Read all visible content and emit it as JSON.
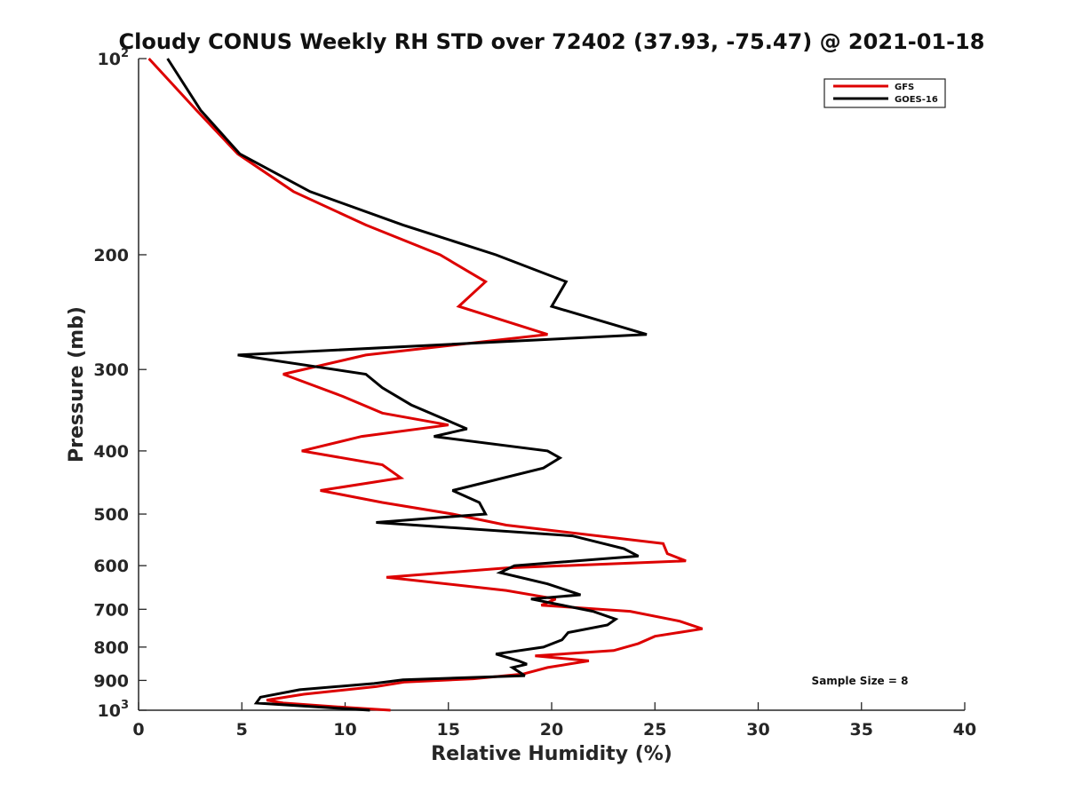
{
  "chart_data": {
    "type": "line",
    "title": "Cloudy CONUS Weekly RH STD over 72402 (37.93, -75.47) @ 2021-01-18",
    "xlabel": "Relative Humidity (%)",
    "ylabel": "Pressure (mb)",
    "xlim": [
      0,
      40
    ],
    "ylim": [
      100,
      1000
    ],
    "y_scale": "log",
    "y_reversed": true,
    "x_ticks": [
      "0",
      "5",
      "10",
      "15",
      "20",
      "25",
      "30",
      "35",
      "40"
    ],
    "y_ticks": [
      {
        "value": 100,
        "label": "10",
        "sup": "2"
      },
      {
        "value": 200,
        "label": "200",
        "sup": ""
      },
      {
        "value": 300,
        "label": "300",
        "sup": ""
      },
      {
        "value": 400,
        "label": "400",
        "sup": ""
      },
      {
        "value": 500,
        "label": "500",
        "sup": ""
      },
      {
        "value": 600,
        "label": "600",
        "sup": ""
      },
      {
        "value": 700,
        "label": "700",
        "sup": ""
      },
      {
        "value": 800,
        "label": "800",
        "sup": ""
      },
      {
        "value": 900,
        "label": "900",
        "sup": ""
      },
      {
        "value": 1000,
        "label": "10",
        "sup": "3"
      }
    ],
    "legend": {
      "placement": "top-right"
    },
    "annotation": "Sample Size = 8",
    "series": [
      {
        "name": "GFS",
        "color": "#dd0000",
        "points": [
          [
            0.5,
            100
          ],
          [
            2.8,
            120
          ],
          [
            4.8,
            140
          ],
          [
            7.5,
            160
          ],
          [
            11.0,
            180
          ],
          [
            14.6,
            200
          ],
          [
            16.8,
            220
          ],
          [
            15.5,
            240
          ],
          [
            19.8,
            265
          ],
          [
            11.0,
            285
          ],
          [
            7.0,
            305
          ],
          [
            9.9,
            330
          ],
          [
            11.8,
            350
          ],
          [
            15.0,
            365
          ],
          [
            10.8,
            380
          ],
          [
            7.9,
            400
          ],
          [
            11.8,
            420
          ],
          [
            12.7,
            440
          ],
          [
            8.8,
            460
          ],
          [
            11.8,
            480
          ],
          [
            15.2,
            500
          ],
          [
            17.8,
            520
          ],
          [
            25.4,
            555
          ],
          [
            25.6,
            575
          ],
          [
            26.5,
            590
          ],
          [
            17.8,
            605
          ],
          [
            12.0,
            625
          ],
          [
            17.8,
            655
          ],
          [
            20.2,
            675
          ],
          [
            19.5,
            690
          ],
          [
            23.8,
            705
          ],
          [
            26.2,
            730
          ],
          [
            27.3,
            750
          ],
          [
            25.0,
            770
          ],
          [
            24.2,
            790
          ],
          [
            23.0,
            810
          ],
          [
            19.2,
            825
          ],
          [
            21.8,
            840
          ],
          [
            19.8,
            860
          ],
          [
            18.6,
            880
          ],
          [
            16.2,
            895
          ],
          [
            12.9,
            905
          ],
          [
            11.5,
            920
          ],
          [
            8.0,
            945
          ],
          [
            6.2,
            965
          ],
          [
            7.0,
            975
          ],
          [
            10.0,
            990
          ],
          [
            12.2,
            1000
          ]
        ]
      },
      {
        "name": "GOES-16",
        "color": "#000000",
        "points": [
          [
            1.4,
            100
          ],
          [
            3.0,
            120
          ],
          [
            4.9,
            140
          ],
          [
            8.3,
            160
          ],
          [
            12.8,
            180
          ],
          [
            17.3,
            200
          ],
          [
            20.7,
            220
          ],
          [
            20.0,
            240
          ],
          [
            24.6,
            265
          ],
          [
            4.8,
            285
          ],
          [
            11.0,
            305
          ],
          [
            11.8,
            320
          ],
          [
            13.2,
            340
          ],
          [
            15.9,
            370
          ],
          [
            14.3,
            380
          ],
          [
            19.8,
            400
          ],
          [
            20.4,
            410
          ],
          [
            19.6,
            425
          ],
          [
            15.2,
            460
          ],
          [
            16.5,
            480
          ],
          [
            16.8,
            500
          ],
          [
            11.5,
            515
          ],
          [
            21.0,
            540
          ],
          [
            23.5,
            565
          ],
          [
            24.2,
            580
          ],
          [
            18.2,
            600
          ],
          [
            17.5,
            615
          ],
          [
            19.8,
            640
          ],
          [
            21.4,
            665
          ],
          [
            19.0,
            675
          ],
          [
            22.0,
            705
          ],
          [
            23.1,
            725
          ],
          [
            22.7,
            740
          ],
          [
            20.8,
            760
          ],
          [
            20.5,
            780
          ],
          [
            19.6,
            800
          ],
          [
            17.3,
            820
          ],
          [
            18.4,
            840
          ],
          [
            18.8,
            850
          ],
          [
            18.1,
            860
          ],
          [
            18.7,
            885
          ],
          [
            12.8,
            898
          ],
          [
            11.4,
            910
          ],
          [
            7.8,
            930
          ],
          [
            5.9,
            955
          ],
          [
            5.7,
            975
          ],
          [
            11.2,
            1000
          ]
        ]
      }
    ]
  }
}
